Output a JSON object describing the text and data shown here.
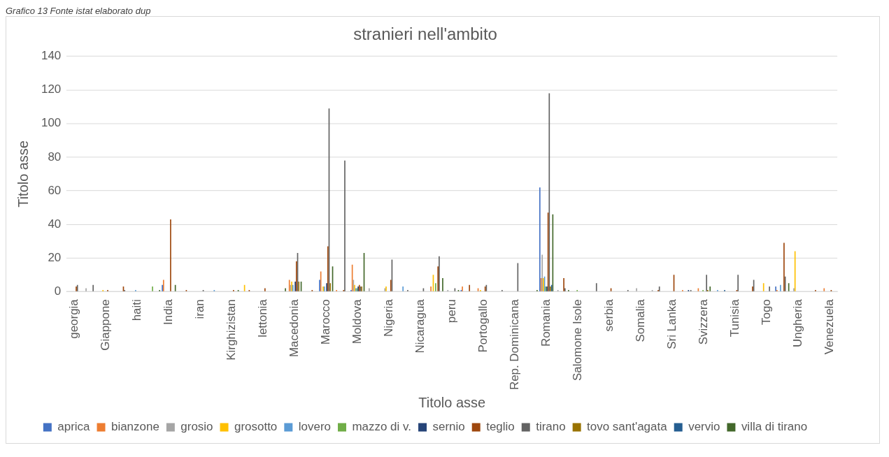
{
  "chart_data": {
    "type": "bar",
    "title": "stranieri nell'ambito",
    "xlabel": "Titolo asse",
    "ylabel": "Titolo asse",
    "annotations": [
      "Grafico 13 Fonte istat elaborato dup"
    ],
    "categories": [
      "georgia",
      null,
      "Giappone",
      null,
      "haiti",
      null,
      "India",
      null,
      "iran",
      null,
      "Kirghizistan",
      null,
      "lettonia",
      null,
      "Macedonia",
      null,
      "Marocco",
      null,
      "Moldova",
      null,
      "Nigeria",
      null,
      "Nicaragua",
      null,
      "peru",
      null,
      "Portogallo",
      null,
      "Rep. Dominicana",
      null,
      "Romania",
      null,
      "Salomone Isole",
      null,
      "serbia",
      null,
      "Somalia",
      null,
      "Sri Lanka",
      null,
      "Svizzera",
      null,
      "Tunisia",
      null,
      "Togo",
      null,
      "Ungheria",
      null,
      "Venezuela"
    ],
    "series": [
      {
        "name": "aprica",
        "color": "#4472c4",
        "values": [
          0,
          0,
          0,
          0,
          0,
          0,
          4,
          0,
          0,
          0,
          0,
          0,
          0,
          0,
          0,
          0,
          7,
          0,
          1,
          0,
          0,
          0,
          0,
          0,
          0,
          1,
          0,
          0,
          0,
          0,
          62,
          0,
          0,
          0,
          0,
          0,
          0,
          0,
          0,
          0,
          0,
          0,
          0,
          0,
          0,
          3,
          0,
          0,
          0
        ]
      },
      {
        "name": "bianzone",
        "color": "#ed7d31",
        "values": [
          0,
          0,
          0,
          0,
          0,
          0,
          7,
          0,
          0,
          0,
          0,
          0,
          0,
          0,
          7,
          0,
          12,
          1,
          16,
          0,
          0,
          0,
          0,
          3,
          0,
          3,
          2,
          0,
          0,
          0,
          8,
          0,
          0,
          0,
          0,
          0,
          0,
          0,
          0,
          1,
          2,
          0,
          0,
          0,
          0,
          1,
          0,
          0,
          2
        ]
      },
      {
        "name": "grosio",
        "color": "#a5a5a5",
        "values": [
          0,
          2,
          0,
          0,
          0,
          0,
          0,
          0,
          0,
          0,
          0,
          0,
          0,
          0,
          4,
          0,
          0,
          0,
          7,
          2,
          2,
          0,
          0,
          0,
          1,
          0,
          0,
          0,
          0,
          0,
          22,
          1,
          0,
          0,
          0,
          0,
          2,
          1,
          0,
          0,
          0,
          0,
          0,
          0,
          0,
          0,
          2,
          0,
          0
        ]
      },
      {
        "name": "grosotto",
        "color": "#ffc000",
        "values": [
          0,
          0,
          1,
          0,
          0,
          0,
          0,
          0,
          0,
          0,
          0,
          4,
          0,
          0,
          6,
          0,
          3,
          0,
          4,
          0,
          3,
          0,
          0,
          10,
          0,
          0,
          1,
          0,
          0,
          0,
          8,
          0,
          0,
          0,
          0,
          0,
          0,
          0,
          0,
          0,
          0,
          0,
          0,
          0,
          5,
          0,
          24,
          0,
          0
        ]
      },
      {
        "name": "lovero",
        "color": "#5b9bd5",
        "values": [
          0,
          0,
          0,
          0,
          1,
          0,
          0,
          0,
          0,
          1,
          0,
          0,
          0,
          0,
          4,
          0,
          3,
          0,
          2,
          0,
          0,
          3,
          0,
          0,
          0,
          0,
          0,
          0,
          0,
          0,
          9,
          0,
          0,
          0,
          0,
          0,
          0,
          0,
          0,
          0,
          0,
          1,
          0,
          0,
          0,
          4,
          0,
          0,
          0
        ]
      },
      {
        "name": "mazzo di v.",
        "color": "#70ad47",
        "values": [
          0,
          0,
          0,
          0,
          0,
          3,
          0,
          0,
          0,
          0,
          0,
          0,
          0,
          0,
          0,
          0,
          0,
          0,
          2,
          0,
          0,
          0,
          0,
          5,
          0,
          0,
          0,
          0,
          0,
          0,
          3,
          0,
          1,
          0,
          0,
          0,
          0,
          0,
          0,
          0,
          1,
          0,
          0,
          0,
          0,
          0,
          0,
          0,
          0
        ]
      },
      {
        "name": "sernio",
        "color": "#264478",
        "values": [
          0,
          0,
          0,
          0,
          0,
          0,
          0,
          0,
          0,
          0,
          0,
          0,
          0,
          0,
          6,
          0,
          5,
          0,
          3,
          0,
          0,
          0,
          0,
          0,
          0,
          0,
          0,
          0,
          0,
          0,
          3,
          0,
          0,
          0,
          0,
          0,
          0,
          0,
          0,
          1,
          0,
          0,
          0,
          0,
          0,
          0,
          0,
          0,
          0
        ]
      },
      {
        "name": "teglio",
        "color": "#9e480e",
        "values": [
          3,
          0,
          1,
          3,
          0,
          0,
          43,
          1,
          0,
          0,
          1,
          1,
          2,
          0,
          18,
          1,
          27,
          1,
          4,
          0,
          7,
          0,
          0,
          15,
          0,
          4,
          3,
          0,
          0,
          0,
          47,
          8,
          0,
          0,
          2,
          0,
          0,
          1,
          10,
          0,
          0,
          0,
          1,
          3,
          0,
          29,
          0,
          1,
          1
        ]
      },
      {
        "name": "tirano",
        "color": "#636363",
        "values": [
          4,
          4,
          0,
          1,
          0,
          0,
          0,
          0,
          1,
          0,
          0,
          0,
          0,
          0,
          23,
          0,
          109,
          78,
          3,
          0,
          19,
          1,
          2,
          21,
          2,
          0,
          4,
          1,
          17,
          0,
          118,
          2,
          0,
          5,
          0,
          1,
          0,
          3,
          0,
          1,
          10,
          0,
          10,
          7,
          3,
          9,
          0,
          0,
          0
        ]
      },
      {
        "name": "tovo sant'agata",
        "color": "#997300",
        "values": [
          0,
          0,
          0,
          0,
          0,
          0,
          0,
          0,
          0,
          0,
          0,
          0,
          0,
          0,
          6,
          0,
          5,
          0,
          3,
          0,
          0,
          0,
          0,
          0,
          0,
          0,
          0,
          0,
          0,
          0,
          3,
          0,
          0,
          0,
          0,
          0,
          0,
          0,
          0,
          0,
          1,
          0,
          0,
          0,
          0,
          0,
          0,
          0,
          0
        ]
      },
      {
        "name": "vervio",
        "color": "#255e91",
        "values": [
          0,
          0,
          0,
          0,
          0,
          0,
          0,
          0,
          0,
          0,
          0,
          0,
          0,
          0,
          0,
          0,
          0,
          0,
          0,
          0,
          0,
          0,
          0,
          0,
          0,
          0,
          0,
          0,
          0,
          0,
          4,
          0,
          0,
          0,
          0,
          0,
          0,
          0,
          0,
          0,
          0,
          1,
          0,
          0,
          0,
          0,
          0,
          0,
          0
        ]
      },
      {
        "name": "villa di tirano",
        "color": "#43682b",
        "values": [
          0,
          0,
          0,
          0,
          0,
          1,
          4,
          0,
          0,
          0,
          1,
          0,
          0,
          2,
          6,
          0,
          15,
          0,
          23,
          0,
          0,
          0,
          0,
          8,
          1,
          0,
          0,
          0,
          0,
          1,
          46,
          1,
          0,
          0,
          0,
          0,
          0,
          0,
          0,
          0,
          3,
          0,
          0,
          0,
          0,
          5,
          0,
          0,
          0
        ]
      }
    ],
    "ylim": [
      0,
      140
    ],
    "yticks": [
      0,
      20,
      40,
      60,
      80,
      100,
      120,
      140
    ],
    "grid": "y",
    "legend": "bottom"
  }
}
